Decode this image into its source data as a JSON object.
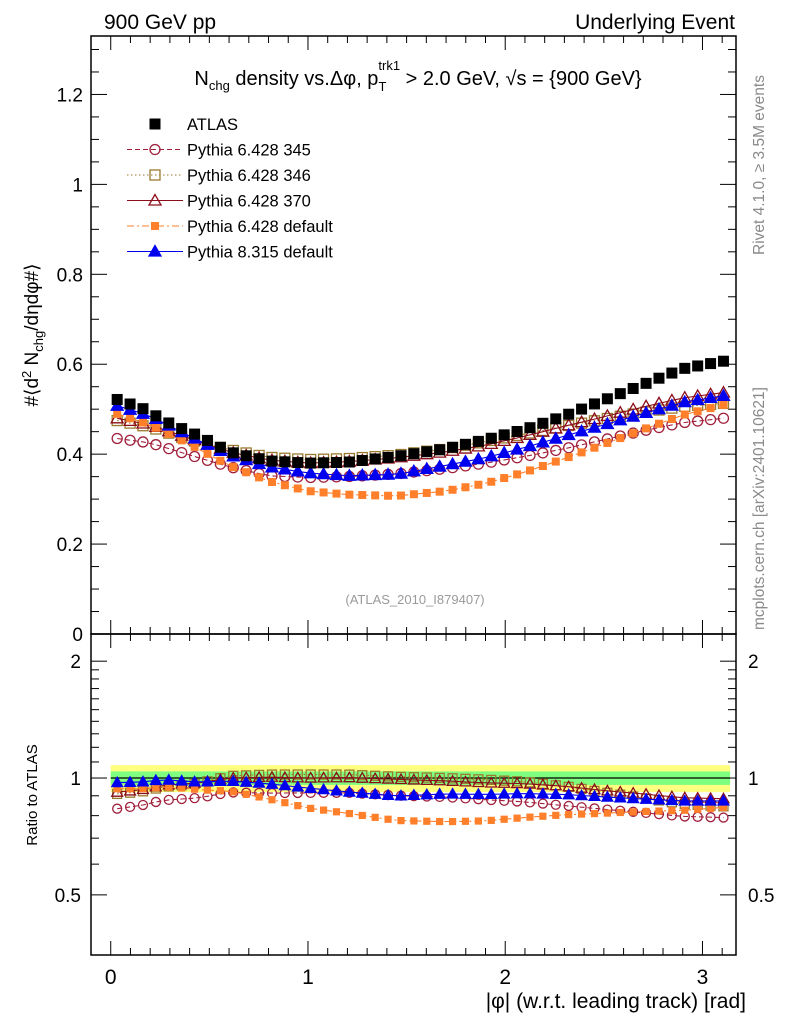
{
  "header": {
    "left": "900 GeV pp",
    "right": "Underlying Event"
  },
  "side": {
    "rivet": "Rivet 4.1.0, ≥ 3.5M events",
    "mcplots": "mcplots.cern.ch [arXiv:2401.10621]"
  },
  "colors": {
    "atlas": "#000000",
    "p345": "#a0203c",
    "p346": "#9a7a2e",
    "p370": "#8b0d1a",
    "pdef6": "#ff7f2a",
    "p8": "#0000ee",
    "band_inner": "#7fff7f",
    "band_outer": "#ffff80"
  },
  "chart_data": {
    "type": "scatter",
    "title": {
      "base": "N",
      "base_sub": "chg",
      "mid": " density vs.",
      "delta": "Δφ",
      "pre_pt": ", p",
      "pt_sup": "trk1",
      "pt_sub": "T",
      "cut": " > 2.0 GeV, ",
      "sqrt": "√s",
      "energy": " = {900 GeV}"
    },
    "xlabel": "|φ| (w.r.t. leading track) [rad]",
    "ylabel": "#⟨d² N_chg/dηdφ#⟩",
    "ratio_ylabel": "Ratio to ATLAS",
    "watermark": "(ATLAS_2010_I879407)",
    "xlim": [
      -0.1,
      3.17
    ],
    "ylim": [
      0,
      1.33
    ],
    "ratio_ylim": [
      0.35,
      2.35
    ],
    "xticks": [
      0,
      1,
      2,
      3
    ],
    "xtick_labels": [
      "0",
      "1",
      "2",
      "3"
    ],
    "yticks": [
      0,
      0.2,
      0.4,
      0.6,
      0.8,
      1,
      1.2
    ],
    "ytick_labels": [
      "0",
      "0.2",
      "0.4",
      "0.6",
      "0.8",
      "1",
      "1.2"
    ],
    "ratio_yticks": [
      0.5,
      1,
      2
    ],
    "ratio_ytick_labels": [
      "0.5",
      "1",
      "2"
    ],
    "x_start": 0.0327,
    "x_step": 0.0654,
    "n_points": 48,
    "series": [
      {
        "id": "atlas",
        "name": "ATLAS",
        "marker": "square-filled",
        "line": "none",
        "anchors": [
          [
            0.03,
            0.522
          ],
          [
            0.16,
            0.502
          ],
          [
            0.3,
            0.468
          ],
          [
            0.45,
            0.44
          ],
          [
            0.6,
            0.405
          ],
          [
            0.8,
            0.385
          ],
          [
            1.0,
            0.38
          ],
          [
            1.2,
            0.382
          ],
          [
            1.45,
            0.395
          ],
          [
            1.7,
            0.412
          ],
          [
            1.9,
            0.432
          ],
          [
            2.1,
            0.455
          ],
          [
            2.3,
            0.485
          ],
          [
            2.5,
            0.52
          ],
          [
            2.7,
            0.555
          ],
          [
            2.9,
            0.59
          ],
          [
            3.11,
            0.607
          ]
        ]
      },
      {
        "id": "p345",
        "name": "Pythia 6.428 345",
        "marker": "circle-open",
        "line": "dashed",
        "anchors": [
          [
            0.03,
            0.435
          ],
          [
            0.2,
            0.425
          ],
          [
            0.4,
            0.398
          ],
          [
            0.6,
            0.372
          ],
          [
            0.8,
            0.352
          ],
          [
            1.0,
            0.348
          ],
          [
            1.2,
            0.35
          ],
          [
            1.45,
            0.356
          ],
          [
            1.7,
            0.368
          ],
          [
            1.9,
            0.38
          ],
          [
            2.1,
            0.395
          ],
          [
            2.3,
            0.412
          ],
          [
            2.5,
            0.432
          ],
          [
            2.7,
            0.452
          ],
          [
            2.9,
            0.47
          ],
          [
            3.11,
            0.48
          ]
        ]
      },
      {
        "id": "p346",
        "name": "Pythia 6.428 346",
        "marker": "square-open",
        "line": "dotted",
        "anchors": [
          [
            0.03,
            0.475
          ],
          [
            0.2,
            0.46
          ],
          [
            0.4,
            0.432
          ],
          [
            0.6,
            0.41
          ],
          [
            0.8,
            0.393
          ],
          [
            1.0,
            0.388
          ],
          [
            1.2,
            0.39
          ],
          [
            1.45,
            0.398
          ],
          [
            1.7,
            0.412
          ],
          [
            1.9,
            0.428
          ],
          [
            2.1,
            0.445
          ],
          [
            2.3,
            0.462
          ],
          [
            2.5,
            0.478
          ],
          [
            2.7,
            0.493
          ],
          [
            2.9,
            0.506
          ],
          [
            3.11,
            0.513
          ]
        ]
      },
      {
        "id": "p370",
        "name": "Pythia 6.428 370",
        "marker": "triangle-open",
        "line": "solid",
        "anchors": [
          [
            0.03,
            0.48
          ],
          [
            0.2,
            0.465
          ],
          [
            0.4,
            0.435
          ],
          [
            0.6,
            0.405
          ],
          [
            0.8,
            0.387
          ],
          [
            1.0,
            0.38
          ],
          [
            1.2,
            0.383
          ],
          [
            1.45,
            0.392
          ],
          [
            1.7,
            0.405
          ],
          [
            1.9,
            0.42
          ],
          [
            2.1,
            0.44
          ],
          [
            2.3,
            0.462
          ],
          [
            2.5,
            0.483
          ],
          [
            2.7,
            0.505
          ],
          [
            2.9,
            0.525
          ],
          [
            3.11,
            0.537
          ]
        ]
      },
      {
        "id": "pdef6",
        "name": "Pythia 6.428 default",
        "marker": "square-filled-small",
        "line": "dashdot",
        "anchors": [
          [
            0.03,
            0.49
          ],
          [
            0.2,
            0.465
          ],
          [
            0.4,
            0.422
          ],
          [
            0.6,
            0.375
          ],
          [
            0.8,
            0.34
          ],
          [
            1.0,
            0.318
          ],
          [
            1.2,
            0.31
          ],
          [
            1.45,
            0.307
          ],
          [
            1.7,
            0.318
          ],
          [
            1.9,
            0.335
          ],
          [
            2.1,
            0.36
          ],
          [
            2.3,
            0.39
          ],
          [
            2.5,
            0.422
          ],
          [
            2.7,
            0.455
          ],
          [
            2.9,
            0.487
          ],
          [
            3.11,
            0.51
          ]
        ]
      },
      {
        "id": "p8",
        "name": "Pythia 8.315 default",
        "marker": "triangle-filled",
        "line": "solid",
        "anchors": [
          [
            0.03,
            0.508
          ],
          [
            0.2,
            0.485
          ],
          [
            0.4,
            0.44
          ],
          [
            0.6,
            0.398
          ],
          [
            0.8,
            0.372
          ],
          [
            1.0,
            0.358
          ],
          [
            1.2,
            0.352
          ],
          [
            1.45,
            0.355
          ],
          [
            1.7,
            0.375
          ],
          [
            1.9,
            0.392
          ],
          [
            2.1,
            0.415
          ],
          [
            2.3,
            0.44
          ],
          [
            2.5,
            0.465
          ],
          [
            2.7,
            0.49
          ],
          [
            2.9,
            0.515
          ],
          [
            3.11,
            0.53
          ]
        ]
      }
    ],
    "ratio_band": {
      "inner": 0.04,
      "outer": 0.08
    },
    "legend_placement": "top-left"
  }
}
